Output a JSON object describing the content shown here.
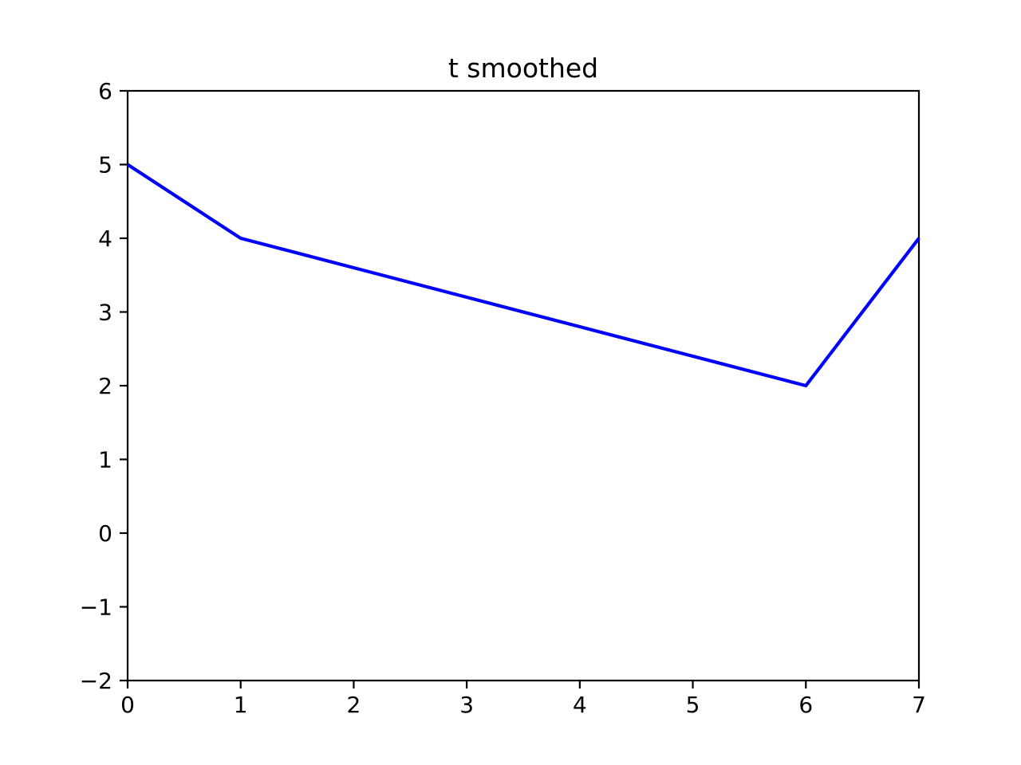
{
  "figure": {
    "background": "#ffffff"
  },
  "chart_data": {
    "type": "line",
    "title": "t smoothed",
    "x": [
      0,
      1,
      2,
      3,
      4,
      5,
      6,
      7
    ],
    "y": [
      5,
      4,
      3.6,
      3.2,
      2.8,
      2.4,
      2,
      4
    ],
    "xlabel": "",
    "ylabel": "",
    "xlim": [
      0,
      7
    ],
    "ylim": [
      -2,
      6
    ],
    "xticks": [
      0,
      1,
      2,
      3,
      4,
      5,
      6,
      7
    ],
    "xtick_labels": [
      "0",
      "1",
      "2",
      "3",
      "4",
      "5",
      "6",
      "7"
    ],
    "yticks": [
      -2,
      -1,
      0,
      1,
      2,
      3,
      4,
      5,
      6
    ],
    "ytick_labels": [
      "−2",
      "−1",
      "0",
      "1",
      "2",
      "3",
      "4",
      "5",
      "6"
    ],
    "grid": false,
    "legend": null,
    "line_color": "#0000ff",
    "axis_color": "#000000",
    "text_color": "#000000"
  }
}
